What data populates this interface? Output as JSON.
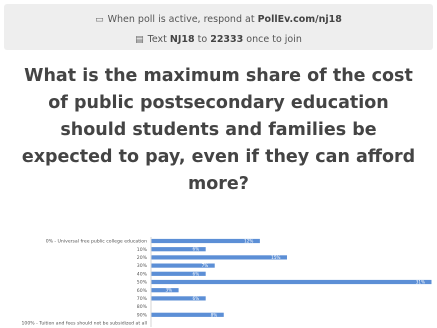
{
  "instructions": {
    "line1_prefix": "When poll is active, respond at",
    "url": "PollEv.com/nj18",
    "line2_text": "Text",
    "code": "NJ18",
    "line2_to": "to",
    "number": "22333",
    "line2_suffix": "once to join"
  },
  "question": {
    "lines": [
      "What is the maximum share of the cost",
      "of public postsecondary education",
      "should students and families be",
      "expected to pay, even if they can afford",
      "more?"
    ]
  },
  "icons": {
    "screen": "screen-icon",
    "phone": "phone-icon"
  },
  "colors": {
    "bar": "#5c8fd6",
    "header_bg": "#eeeeee",
    "question_text": "#444444"
  },
  "chart_data": {
    "type": "bar",
    "orientation": "horizontal",
    "categories": [
      "0% - Universal free public college education",
      "10%",
      "20%",
      "30%",
      "40%",
      "50%",
      "60%",
      "70%",
      "80%",
      "90%",
      "100% - Tuition and fees should not be subsidized at all"
    ],
    "values": [
      12,
      6,
      15,
      7,
      6,
      31,
      3,
      6,
      0,
      8,
      0
    ],
    "value_labels": [
      "12%",
      "6%",
      "15%",
      "7%",
      "6%",
      "31%",
      "3%",
      "6%",
      "",
      "8%",
      ""
    ],
    "xlim": [
      0,
      31
    ]
  }
}
